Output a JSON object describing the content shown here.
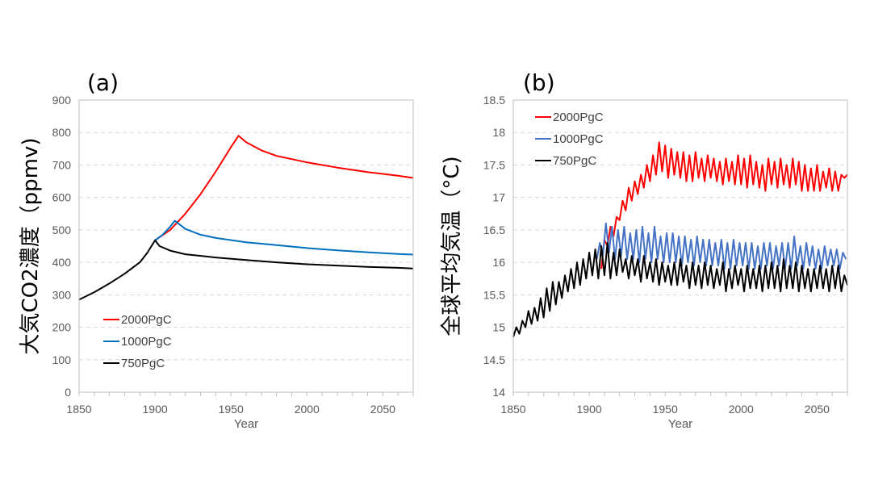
{
  "chart_data": [
    {
      "type": "line",
      "panel_label": "(a)",
      "xlabel": "Year",
      "ylabel": "大気CO2濃度（ppmv)",
      "xlim": [
        1850,
        2070
      ],
      "ylim": [
        0,
        900
      ],
      "xticks": [
        1850,
        1900,
        1950,
        2000,
        2050
      ],
      "yticks": [
        0,
        100,
        200,
        300,
        400,
        500,
        600,
        700,
        800,
        900
      ],
      "grid": "horizontal dashed",
      "legend_position": "bottom-left",
      "series": [
        {
          "name": "2000PgC",
          "color": "#ff0000",
          "x": [
            1900,
            1910,
            1920,
            1930,
            1940,
            1950,
            1955,
            1960,
            1970,
            1980,
            2000,
            2020,
            2040,
            2060,
            2070
          ],
          "y": [
            468,
            500,
            550,
            610,
            680,
            755,
            790,
            770,
            745,
            728,
            708,
            692,
            678,
            667,
            660
          ]
        },
        {
          "name": "1000PgC",
          "color": "#0070c0",
          "x": [
            1900,
            1905,
            1910,
            1913,
            1920,
            1930,
            1940,
            1960,
            1980,
            2000,
            2020,
            2040,
            2060,
            2070
          ],
          "y": [
            468,
            485,
            510,
            528,
            503,
            485,
            475,
            462,
            453,
            444,
            437,
            431,
            426,
            424
          ]
        },
        {
          "name": "750PgC",
          "color": "#000000",
          "x": [
            1850,
            1860,
            1870,
            1880,
            1890,
            1895,
            1900,
            1903,
            1910,
            1920,
            1940,
            1960,
            1980,
            2000,
            2020,
            2040,
            2060,
            2070
          ],
          "y": [
            285,
            308,
            335,
            365,
            400,
            430,
            468,
            450,
            436,
            425,
            415,
            407,
            400,
            394,
            390,
            386,
            383,
            381
          ]
        }
      ]
    },
    {
      "type": "line",
      "panel_label": "(b)",
      "xlabel": "Year",
      "ylabel": "全球平均気温（°C)",
      "xlim": [
        1850,
        2070
      ],
      "ylim": [
        14,
        18.5
      ],
      "xticks": [
        1850,
        1900,
        1950,
        2000,
        2050
      ],
      "yticks": [
        14,
        14.5,
        15,
        15.5,
        16,
        16.5,
        17,
        17.5,
        18,
        18.5
      ],
      "ytick_labels": [
        "14",
        "14.5",
        "15",
        "15.5",
        "16",
        "16.5",
        "17",
        "17.5",
        "18",
        "18.5"
      ],
      "grid": "horizontal dashed",
      "legend_position": "top-left",
      "series": [
        {
          "name": "2000PgC",
          "color": "#ff0000",
          "start_year": 1908,
          "end_year": 2070,
          "step": 2,
          "y": [
            15.9,
            16.35,
            16.25,
            16.55,
            16.4,
            16.7,
            16.65,
            16.95,
            16.8,
            17.15,
            16.95,
            17.25,
            17.05,
            17.35,
            17.15,
            17.5,
            17.25,
            17.65,
            17.35,
            17.85,
            17.4,
            17.8,
            17.3,
            17.75,
            17.35,
            17.7,
            17.3,
            17.7,
            17.25,
            17.65,
            17.25,
            17.7,
            17.3,
            17.6,
            17.25,
            17.65,
            17.3,
            17.6,
            17.25,
            17.55,
            17.2,
            17.6,
            17.25,
            17.55,
            17.2,
            17.65,
            17.2,
            17.6,
            17.15,
            17.65,
            17.2,
            17.55,
            17.15,
            17.5,
            17.1,
            17.6,
            17.2,
            17.55,
            17.15,
            17.6,
            17.2,
            17.5,
            17.15,
            17.6,
            17.2,
            17.55,
            17.1,
            17.5,
            17.1,
            17.45,
            17.1,
            17.5,
            17.1,
            17.4,
            17.15,
            17.45,
            17.1,
            17.4,
            17.1,
            17.35,
            17.3,
            17.35
          ]
        },
        {
          "name": "1000PgC",
          "color": "#4472c4",
          "start_year": 1905,
          "end_year": 2070,
          "step": 2,
          "y": [
            16.05,
            16.3,
            16.1,
            16.6,
            16.15,
            16.55,
            16.05,
            16.5,
            16.1,
            16.55,
            16.05,
            16.45,
            16.05,
            16.5,
            16.0,
            16.55,
            16.05,
            16.45,
            16.0,
            16.55,
            16.05,
            16.4,
            16.0,
            16.45,
            16.0,
            16.45,
            16.0,
            16.4,
            15.95,
            16.4,
            16.0,
            16.35,
            15.95,
            16.4,
            16.0,
            16.35,
            15.95,
            16.35,
            15.95,
            16.3,
            15.95,
            16.35,
            15.9,
            16.3,
            15.9,
            16.35,
            15.95,
            16.3,
            15.95,
            16.3,
            15.9,
            16.3,
            15.9,
            16.25,
            15.9,
            16.3,
            15.95,
            16.3,
            15.9,
            16.25,
            15.95,
            16.3,
            15.9,
            16.3,
            15.9,
            16.4,
            15.95,
            16.25,
            15.9,
            16.3,
            15.95,
            16.25,
            15.9,
            16.2,
            15.9,
            16.25,
            15.95,
            16.2,
            15.95,
            16.2,
            15.9,
            16.15,
            16.05
          ]
        },
        {
          "name": "750PgC",
          "color": "#000000",
          "start_year": 1850,
          "end_year": 2070,
          "step": 2,
          "y": [
            14.85,
            15.0,
            14.9,
            15.1,
            15.0,
            15.25,
            15.05,
            15.3,
            15.1,
            15.45,
            15.15,
            15.6,
            15.25,
            15.7,
            15.35,
            15.7,
            15.45,
            15.8,
            15.55,
            15.9,
            15.6,
            16.0,
            15.65,
            16.05,
            15.75,
            16.15,
            15.8,
            16.2,
            15.75,
            16.25,
            15.8,
            16.3,
            15.75,
            16.15,
            15.8,
            16.2,
            15.85,
            16.05,
            15.75,
            16.1,
            15.8,
            16.05,
            15.7,
            16.1,
            15.75,
            16.0,
            15.7,
            16.05,
            15.65,
            16.0,
            15.7,
            15.95,
            15.65,
            16.0,
            15.65,
            16.05,
            15.7,
            15.95,
            15.6,
            16.0,
            15.65,
            15.95,
            15.6,
            16.0,
            15.65,
            15.95,
            15.6,
            15.9,
            15.65,
            16.0,
            15.55,
            15.9,
            15.6,
            15.95,
            15.65,
            15.9,
            15.55,
            15.95,
            15.6,
            15.9,
            15.6,
            15.95,
            15.55,
            15.95,
            15.6,
            16.0,
            15.6,
            15.95,
            15.55,
            16.05,
            15.6,
            15.95,
            15.6,
            16.0,
            15.55,
            15.95,
            15.6,
            15.9,
            15.55,
            15.9,
            15.6,
            15.95,
            15.6,
            15.9,
            15.55,
            15.95,
            15.6,
            15.95,
            15.55,
            15.8,
            15.65
          ]
        }
      ]
    }
  ]
}
